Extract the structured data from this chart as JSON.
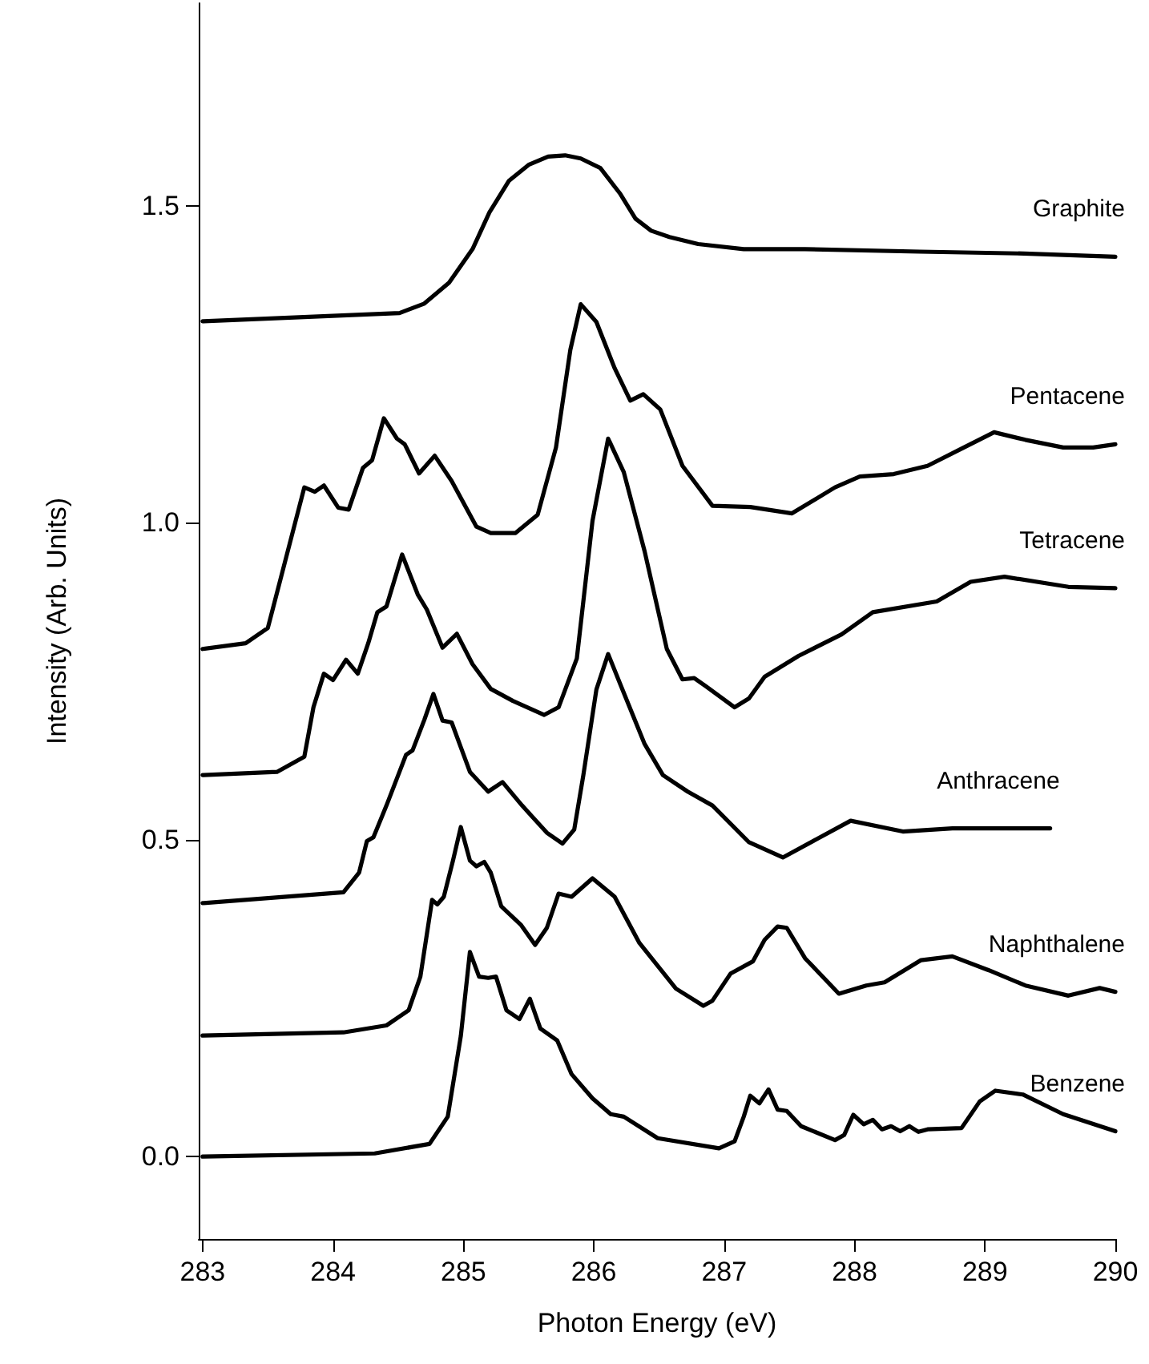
{
  "chart_data": {
    "type": "line",
    "xlabel": "Photon Energy (eV)",
    "ylabel": "Intensity (Arb. Units)",
    "xlim": [
      282.97,
      290
    ],
    "ylim": [
      -0.13,
      1.82
    ],
    "xticks": [
      283,
      284,
      285,
      286,
      287,
      288,
      289,
      290
    ],
    "yticks": [
      {
        "value": 0,
        "label": "0.0"
      },
      {
        "value": 0.5,
        "label": "0.5"
      },
      {
        "value": 1,
        "label": "1.0"
      },
      {
        "value": 1.5,
        "label": "1.5"
      }
    ],
    "grid": false,
    "legend": false,
    "marker": "none",
    "line_style": "solid",
    "series": [
      {
        "name": "Graphite",
        "color": "#000000",
        "x": [
          283,
          284.51,
          284.7,
          284.89,
          285.07,
          285.2,
          285.35,
          285.5,
          285.65,
          285.78,
          285.9,
          286.05,
          286.2,
          286.32,
          286.44,
          286.58,
          286.8,
          287.15,
          287.62,
          288.5,
          289.3,
          290
        ],
        "values": [
          1.318,
          1.331,
          1.346,
          1.379,
          1.432,
          1.49,
          1.54,
          1.565,
          1.578,
          1.58,
          1.575,
          1.56,
          1.52,
          1.48,
          1.461,
          1.451,
          1.44,
          1.432,
          1.432,
          1.428,
          1.425,
          1.42
        ]
      },
      {
        "name": "Pentacene",
        "color": "#000000",
        "x": [
          283,
          283.33,
          283.5,
          283.64,
          283.78,
          283.86,
          283.93,
          284.04,
          284.12,
          284.23,
          284.3,
          284.39,
          284.49,
          284.55,
          284.66,
          284.78,
          284.91,
          285.1,
          285.21,
          285.4,
          285.57,
          285.71,
          285.82,
          285.9,
          286.02,
          286.16,
          286.28,
          286.38,
          286.51,
          286.68,
          286.91,
          287.2,
          287.52,
          287.85,
          288.04,
          288.3,
          288.56,
          288.82,
          289.07,
          289.31,
          289.6,
          289.83,
          290
        ],
        "values": [
          0.801,
          0.81,
          0.834,
          0.945,
          1.056,
          1.049,
          1.059,
          1.024,
          1.021,
          1.087,
          1.099,
          1.165,
          1.133,
          1.124,
          1.078,
          1.106,
          1.066,
          0.994,
          0.984,
          0.984,
          1.013,
          1.119,
          1.273,
          1.345,
          1.317,
          1.244,
          1.193,
          1.203,
          1.179,
          1.09,
          1.027,
          1.025,
          1.015,
          1.056,
          1.073,
          1.077,
          1.09,
          1.117,
          1.143,
          1.131,
          1.119,
          1.119,
          1.124
        ]
      },
      {
        "name": "Tetracene",
        "color": "#000000",
        "x": [
          283,
          283.57,
          283.78,
          283.85,
          283.93,
          284.0,
          284.1,
          284.19,
          284.27,
          284.34,
          284.41,
          284.53,
          284.65,
          284.72,
          284.84,
          284.95,
          285.07,
          285.21,
          285.38,
          285.62,
          285.73,
          285.87,
          285.99,
          286.11,
          286.23,
          286.39,
          286.56,
          286.68,
          286.77,
          286.86,
          287.08,
          287.19,
          287.31,
          287.57,
          287.9,
          288.14,
          288.63,
          288.89,
          289.15,
          289.64,
          290
        ],
        "values": [
          0.602,
          0.607,
          0.631,
          0.709,
          0.762,
          0.752,
          0.784,
          0.762,
          0.81,
          0.859,
          0.868,
          0.95,
          0.887,
          0.863,
          0.803,
          0.825,
          0.777,
          0.738,
          0.719,
          0.697,
          0.709,
          0.786,
          1.003,
          1.133,
          1.08,
          0.955,
          0.801,
          0.753,
          0.755,
          0.742,
          0.709,
          0.723,
          0.757,
          0.79,
          0.824,
          0.859,
          0.876,
          0.907,
          0.915,
          0.899,
          0.897
        ]
      },
      {
        "name": "Anthracene",
        "color": "#000000",
        "x": [
          283,
          284.08,
          284.2,
          284.26,
          284.31,
          284.41,
          284.56,
          284.61,
          284.7,
          284.77,
          284.84,
          284.91,
          284.98,
          285.05,
          285.19,
          285.3,
          285.45,
          285.64,
          285.76,
          285.85,
          285.92,
          286.02,
          286.11,
          286.2,
          286.39,
          286.53,
          286.72,
          286.91,
          287.19,
          287.45,
          287.71,
          287.97,
          288.37,
          288.75,
          289.5
        ],
        "values": [
          0.4,
          0.417,
          0.448,
          0.498,
          0.504,
          0.554,
          0.634,
          0.641,
          0.689,
          0.73,
          0.688,
          0.685,
          0.646,
          0.607,
          0.576,
          0.591,
          0.554,
          0.511,
          0.494,
          0.516,
          0.602,
          0.737,
          0.793,
          0.747,
          0.651,
          0.602,
          0.576,
          0.554,
          0.496,
          0.472,
          0.501,
          0.53,
          0.513,
          0.518,
          0.518
        ]
      },
      {
        "name": "Naphthalene",
        "color": "#000000",
        "x": [
          283,
          284.08,
          284.41,
          284.58,
          284.67,
          284.76,
          284.8,
          284.85,
          284.92,
          284.98,
          285.05,
          285.1,
          285.16,
          285.21,
          285.29,
          285.44,
          285.55,
          285.64,
          285.73,
          285.83,
          285.99,
          286.16,
          286.35,
          286.63,
          286.84,
          286.91,
          287.05,
          287.22,
          287.31,
          287.41,
          287.48,
          287.62,
          287.88,
          288.09,
          288.23,
          288.51,
          288.75,
          289.03,
          289.31,
          289.64,
          289.88,
          290
        ],
        "values": [
          0.191,
          0.196,
          0.207,
          0.231,
          0.284,
          0.405,
          0.398,
          0.41,
          0.467,
          0.52,
          0.467,
          0.458,
          0.465,
          0.448,
          0.395,
          0.366,
          0.334,
          0.361,
          0.415,
          0.41,
          0.439,
          0.41,
          0.337,
          0.265,
          0.238,
          0.246,
          0.289,
          0.308,
          0.342,
          0.363,
          0.361,
          0.313,
          0.257,
          0.27,
          0.275,
          0.31,
          0.316,
          0.294,
          0.27,
          0.254,
          0.266,
          0.26
        ]
      },
      {
        "name": "Benzene",
        "color": "#000000",
        "x": [
          283,
          284.32,
          284.74,
          284.88,
          284.98,
          285.05,
          285.12,
          285.19,
          285.25,
          285.33,
          285.43,
          285.51,
          285.59,
          285.72,
          285.83,
          285.99,
          286.13,
          286.23,
          286.49,
          286.96,
          287.08,
          287.15,
          287.2,
          287.27,
          287.34,
          287.41,
          287.48,
          287.59,
          287.85,
          287.92,
          287.99,
          288.07,
          288.14,
          288.21,
          288.28,
          288.35,
          288.42,
          288.49,
          288.56,
          288.82,
          288.96,
          289.08,
          289.29,
          289.6,
          290
        ],
        "values": [
          0,
          0.005,
          0.02,
          0.063,
          0.19,
          0.323,
          0.284,
          0.282,
          0.284,
          0.231,
          0.217,
          0.249,
          0.202,
          0.183,
          0.13,
          0.092,
          0.067,
          0.063,
          0.029,
          0.013,
          0.024,
          0.063,
          0.096,
          0.084,
          0.106,
          0.074,
          0.072,
          0.048,
          0.026,
          0.034,
          0.066,
          0.051,
          0.058,
          0.043,
          0.048,
          0.04,
          0.048,
          0.039,
          0.043,
          0.045,
          0.087,
          0.104,
          0.098,
          0.067,
          0.04
        ]
      }
    ]
  }
}
